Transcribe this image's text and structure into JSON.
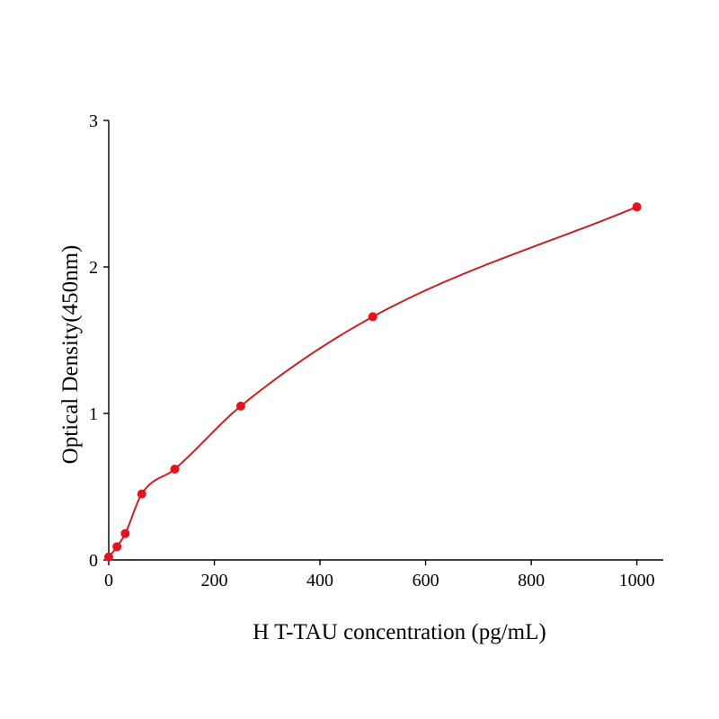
{
  "chart_data": {
    "type": "scatter",
    "title": "",
    "xlabel": "H T-TAU concentration (pg/mL)",
    "ylabel": "Optical Density(450nm)",
    "xlim": [
      0,
      1050
    ],
    "ylim": [
      0,
      3
    ],
    "x_ticks": [
      "0",
      "200",
      "400",
      "600",
      "800",
      "1000"
    ],
    "y_ticks": [
      "0",
      "1",
      "2",
      "3"
    ],
    "grid": false,
    "legend": "none",
    "series": [
      {
        "points": [
          {
            "x": 0,
            "y": 0.02
          },
          {
            "x": 15.6,
            "y": 0.09
          },
          {
            "x": 31.2,
            "y": 0.18
          },
          {
            "x": 62.5,
            "y": 0.45
          },
          {
            "x": 125,
            "y": 0.62
          },
          {
            "x": 250,
            "y": 1.05
          },
          {
            "x": 500,
            "y": 1.66
          },
          {
            "x": 1000,
            "y": 2.41
          }
        ],
        "fit_curve": true
      }
    ],
    "colors": {
      "points": "#e8111c",
      "curve": "#cc1f1f",
      "axes": "#000000"
    }
  }
}
